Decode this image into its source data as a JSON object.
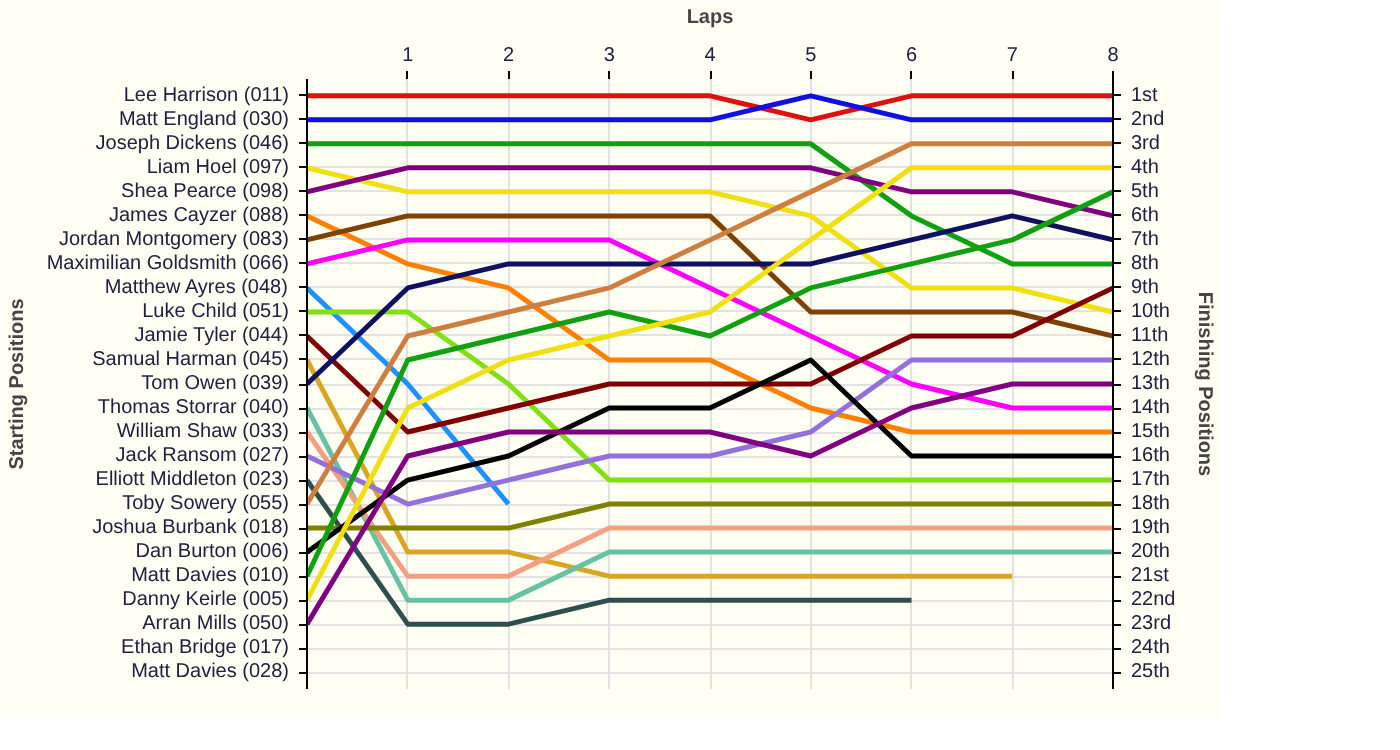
{
  "chart_data": {
    "type": "line",
    "xlabel": "Laps",
    "ylabel": "Finishing Positions",
    "x": [
      0,
      1,
      2,
      3,
      4,
      5,
      6,
      7,
      8
    ],
    "xlim": [
      0,
      8
    ],
    "xticks": [
      1,
      2,
      3,
      4,
      5,
      6,
      7,
      8
    ],
    "ylim": [
      25.7,
      0.3
    ],
    "yticks": [
      {
        "value": 1,
        "label": "1st"
      },
      {
        "value": 2,
        "label": "2nd"
      },
      {
        "value": 3,
        "label": "3rd"
      },
      {
        "value": 4,
        "label": "4th"
      },
      {
        "value": 5,
        "label": "5th"
      },
      {
        "value": 6,
        "label": "6th"
      },
      {
        "value": 7,
        "label": "7th"
      },
      {
        "value": 8,
        "label": "8th"
      },
      {
        "value": 9,
        "label": "9th"
      },
      {
        "value": 10,
        "label": "10th"
      },
      {
        "value": 11,
        "label": "11th"
      },
      {
        "value": 12,
        "label": "12th"
      },
      {
        "value": 13,
        "label": "13th"
      },
      {
        "value": 14,
        "label": "14th"
      },
      {
        "value": 15,
        "label": "15th"
      },
      {
        "value": 16,
        "label": "16th"
      },
      {
        "value": 17,
        "label": "17th"
      },
      {
        "value": 18,
        "label": "18th"
      },
      {
        "value": 19,
        "label": "19th"
      },
      {
        "value": 20,
        "label": "20th"
      },
      {
        "value": 21,
        "label": "21st"
      },
      {
        "value": 22,
        "label": "22nd"
      },
      {
        "value": 23,
        "label": "23rd"
      },
      {
        "value": 24,
        "label": "24th"
      },
      {
        "value": 25,
        "label": "25th"
      }
    ],
    "annotations": [
      "Starting Positions",
      "Lee Harrison (011)",
      "Matt England (030)",
      "Joseph Dickens (046)",
      "Liam Hoel (097)",
      "Shea Pearce (098)",
      "James Cayzer (088)",
      "Jordan Montgomery (083)",
      "Maximilian Goldsmith (066)",
      "Matthew Ayres (048)",
      "Luke Child (051)",
      "Jamie Tyler (044)",
      "Samual Harman (045)",
      "Tom Owen (039)",
      "Thomas Storrar (040)",
      "William Shaw (033)",
      "Jack Ransom (027)",
      "Elliott Middleton (023)",
      "Toby Sowery (055)",
      "Joshua Burbank (018)",
      "Dan Burton (006)",
      "Matt Davies (010)",
      "Danny Keirle (005)",
      "Arran Mills (050)",
      "Ethan Bridge (017)",
      "Matt Davies (028)"
    ],
    "grid": true,
    "line_style": "solid",
    "series": [
      {
        "color": "#e01010",
        "values": [
          1,
          1,
          1,
          1,
          1,
          2,
          1,
          1,
          1
        ]
      },
      {
        "color": "#1010e0",
        "values": [
          2,
          2,
          2,
          2,
          2,
          1,
          2,
          2,
          2
        ]
      },
      {
        "color": "#10a010",
        "values": [
          3,
          3,
          3,
          3,
          3,
          3,
          6,
          8,
          8
        ]
      },
      {
        "color": "#f0e010",
        "values": [
          4,
          5,
          5,
          5,
          5,
          6,
          9,
          9,
          10
        ]
      },
      {
        "color": "#800080",
        "values": [
          5,
          4,
          4,
          4,
          4,
          4,
          5,
          5,
          6
        ]
      },
      {
        "color": "#ff8000",
        "values": [
          6,
          8,
          9,
          12,
          12,
          14,
          15,
          15,
          15
        ]
      },
      {
        "color": "#804000",
        "values": [
          7,
          6,
          6,
          6,
          6,
          10,
          10,
          10,
          11
        ]
      },
      {
        "color": "#ff00ff",
        "values": [
          8,
          7,
          7,
          7,
          9,
          11,
          13,
          14,
          14
        ]
      },
      {
        "color": "#1e90ff",
        "values": [
          9,
          13,
          18,
          null,
          null,
          null,
          null,
          null,
          null
        ]
      },
      {
        "color": "#80e010",
        "values": [
          10,
          10,
          13,
          17,
          17,
          17,
          17,
          17,
          17
        ]
      },
      {
        "color": "#800000",
        "values": [
          11,
          15,
          14,
          13,
          13,
          13,
          11,
          11,
          9
        ]
      },
      {
        "color": "#daa520",
        "values": [
          12,
          20,
          20,
          21,
          21,
          21,
          21,
          21,
          null
        ]
      },
      {
        "color": "#101060",
        "values": [
          13,
          9,
          8,
          8,
          8,
          8,
          7,
          6,
          7
        ]
      },
      {
        "color": "#66c2a5",
        "values": [
          14,
          22,
          22,
          20,
          20,
          20,
          20,
          20,
          20
        ]
      },
      {
        "color": "#f4a080",
        "values": [
          15,
          21,
          21,
          19,
          19,
          19,
          19,
          19,
          19
        ]
      },
      {
        "color": "#9370db",
        "values": [
          16,
          18,
          17,
          16,
          16,
          15,
          12,
          12,
          12
        ]
      },
      {
        "color": "#2f4f4f",
        "values": [
          17,
          23,
          23,
          22,
          22,
          22,
          22,
          null,
          null
        ]
      },
      {
        "color": "#cd7f3f",
        "values": [
          18,
          11,
          10,
          9,
          7,
          5,
          3,
          3,
          3
        ]
      },
      {
        "color": "#808000",
        "values": [
          19,
          19,
          19,
          18,
          18,
          18,
          18,
          18,
          18
        ]
      },
      {
        "color": "#000000",
        "values": [
          20,
          17,
          16,
          14,
          14,
          12,
          16,
          16,
          16
        ]
      },
      {
        "color": "#10a010",
        "values": [
          21,
          12,
          11,
          10,
          11,
          9,
          8,
          7,
          5
        ]
      },
      {
        "color": "#f0e010",
        "values": [
          22,
          14,
          12,
          11,
          10,
          7,
          4,
          4,
          4
        ]
      },
      {
        "color": "#800080",
        "values": [
          23,
          16,
          15,
          15,
          15,
          16,
          14,
          13,
          13
        ]
      }
    ]
  }
}
